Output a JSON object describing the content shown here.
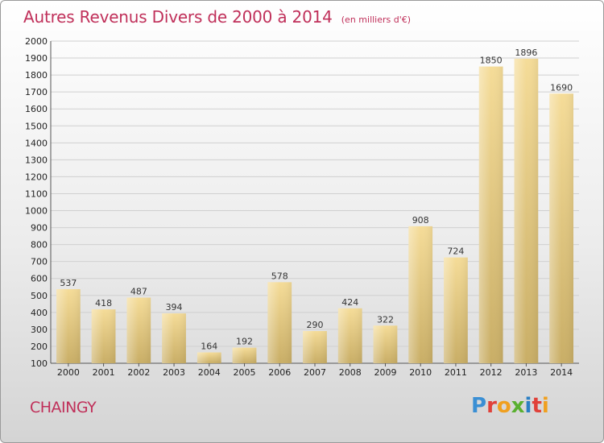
{
  "chart_data": {
    "type": "bar",
    "title": "Autres Revenus Divers de 2000 à 2014",
    "subtitle": "(en milliers d'€)",
    "categories": [
      "2000",
      "2001",
      "2002",
      "2003",
      "2004",
      "2005",
      "2006",
      "2007",
      "2008",
      "2009",
      "2010",
      "2011",
      "2012",
      "2013",
      "2014"
    ],
    "values": [
      537,
      418,
      487,
      394,
      164,
      192,
      578,
      290,
      424,
      322,
      908,
      724,
      1850,
      1896,
      1690
    ],
    "ylim": [
      100,
      2000
    ],
    "yticks": [
      100,
      200,
      300,
      400,
      500,
      600,
      700,
      800,
      900,
      1000,
      1100,
      1200,
      1300,
      1400,
      1500,
      1600,
      1700,
      1800,
      1900,
      2000
    ],
    "grid": true,
    "bar_color": "#e8cf86"
  },
  "footer": {
    "commune": "CHAINGY",
    "brand": "Proxiti",
    "brand_colors": [
      "#3a8fd4",
      "#e0413a",
      "#f0a020",
      "#5ab030",
      "#2a7fc4",
      "#e0413a",
      "#f0a020"
    ]
  }
}
